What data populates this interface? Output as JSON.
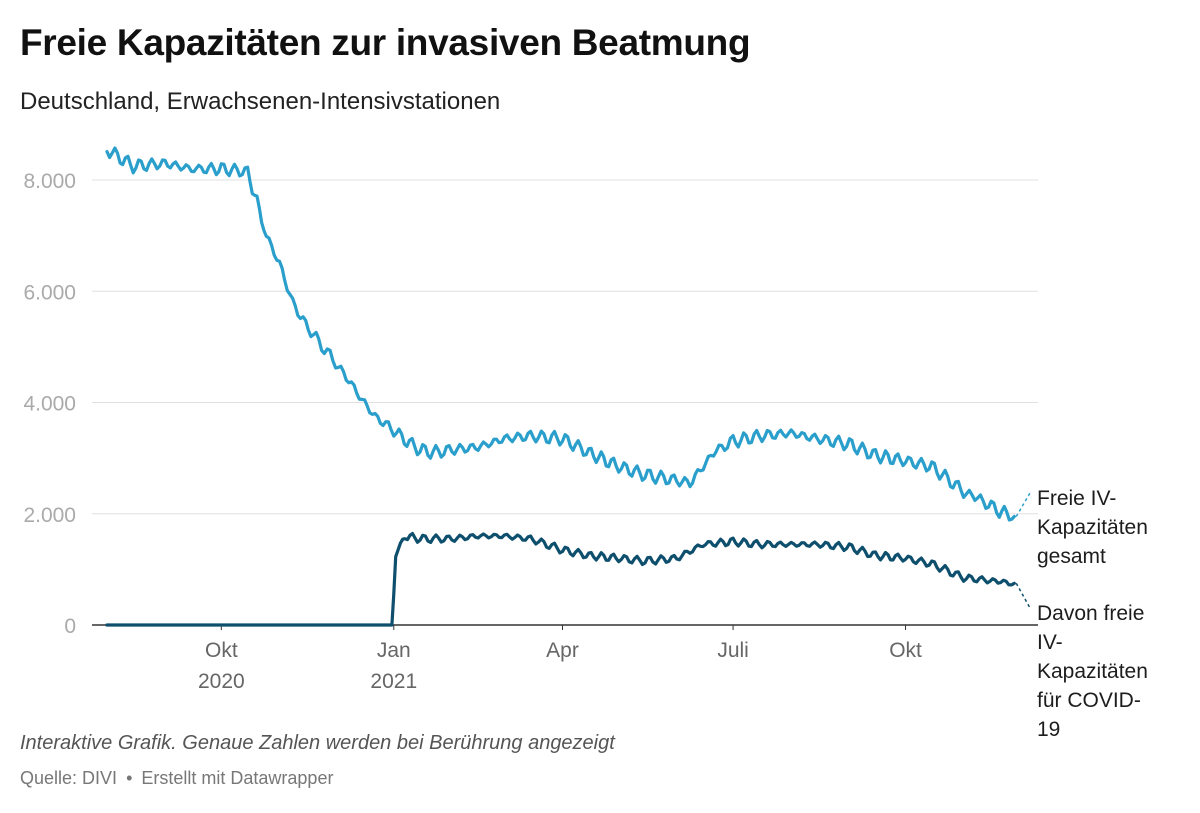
{
  "title": "Freie Kapazitäten zur invasiven Beatmung",
  "subtitle": "Deutschland, Erwachsenen-Intensivstationen",
  "note": "Interaktive Grafik. Genaue Zahlen werden bei Berührung angezeigt",
  "source": {
    "label": "Quelle: DIVI",
    "separator": "•",
    "made_with": "Erstellt mit Datawrapper"
  },
  "colors": {
    "total": "#2a9fcb",
    "covid": "#0e4f6e",
    "grid": "#e0e0e0",
    "axis": "#333333",
    "tick_text": "#aaaaaa",
    "x_tick_text": "#666666"
  },
  "chart_data": {
    "type": "line",
    "y_ticks": [
      "8.000",
      "6.000",
      "4.000",
      "2.000",
      "0"
    ],
    "y_tick_values": [
      8000,
      6000,
      4000,
      2000,
      0
    ],
    "ylim": [
      0,
      8600
    ],
    "x_range": [
      "2020-08-01",
      "2021-11-30"
    ],
    "x_ticks": [
      {
        "date": "2020-10-01",
        "label": "Okt",
        "year": "2020"
      },
      {
        "date": "2021-01-01",
        "label": "Jan",
        "year": "2021"
      },
      {
        "date": "2021-04-01",
        "label": "Apr",
        "year": ""
      },
      {
        "date": "2021-07-01",
        "label": "Juli",
        "year": ""
      },
      {
        "date": "2021-10-01",
        "label": "Okt",
        "year": ""
      }
    ],
    "grid": true,
    "series": [
      {
        "name": "Freie IV-Kapazitäten gesamt",
        "label_lines": [
          "Freie IV-",
          "Kapazitäten",
          "gesamt"
        ],
        "points": [
          [
            "2020-08-01",
            8550
          ],
          [
            "2020-08-15",
            8250
          ],
          [
            "2020-09-01",
            8300
          ],
          [
            "2020-09-15",
            8200
          ],
          [
            "2020-10-01",
            8200
          ],
          [
            "2020-10-15",
            8150
          ],
          [
            "2020-10-20",
            7600
          ],
          [
            "2020-10-25",
            7000
          ],
          [
            "2020-11-01",
            6500
          ],
          [
            "2020-11-08",
            5800
          ],
          [
            "2020-11-15",
            5400
          ],
          [
            "2020-11-22",
            5100
          ],
          [
            "2020-12-01",
            4700
          ],
          [
            "2020-12-08",
            4400
          ],
          [
            "2020-12-15",
            4050
          ],
          [
            "2020-12-22",
            3750
          ],
          [
            "2021-01-01",
            3500
          ],
          [
            "2021-01-08",
            3300
          ],
          [
            "2021-01-15",
            3150
          ],
          [
            "2021-01-22",
            3100
          ],
          [
            "2021-02-01",
            3150
          ],
          [
            "2021-02-15",
            3200
          ],
          [
            "2021-03-01",
            3350
          ],
          [
            "2021-03-15",
            3400
          ],
          [
            "2021-04-01",
            3350
          ],
          [
            "2021-04-15",
            3100
          ],
          [
            "2021-05-01",
            2850
          ],
          [
            "2021-05-15",
            2700
          ],
          [
            "2021-06-01",
            2600
          ],
          [
            "2021-06-08",
            2550
          ],
          [
            "2021-06-15",
            2850
          ],
          [
            "2021-06-22",
            3150
          ],
          [
            "2021-07-01",
            3300
          ],
          [
            "2021-07-15",
            3400
          ],
          [
            "2021-08-01",
            3450
          ],
          [
            "2021-08-15",
            3350
          ],
          [
            "2021-09-01",
            3250
          ],
          [
            "2021-09-15",
            3050
          ],
          [
            "2021-10-01",
            2950
          ],
          [
            "2021-10-15",
            2850
          ],
          [
            "2021-11-01",
            2400
          ],
          [
            "2021-11-10",
            2250
          ],
          [
            "2021-11-20",
            2050
          ],
          [
            "2021-11-28",
            1950
          ]
        ]
      },
      {
        "name": "Davon freie IV-Kapazitäten für COVID-19",
        "label_lines": [
          "Davon freie",
          "IV-",
          "Kapazitäten",
          "für COVID-",
          "19"
        ],
        "points": [
          [
            "2020-08-01",
            0
          ],
          [
            "2020-12-31",
            0
          ],
          [
            "2021-01-02",
            1250
          ],
          [
            "2021-01-07",
            1600
          ],
          [
            "2021-01-15",
            1550
          ],
          [
            "2021-02-01",
            1550
          ],
          [
            "2021-02-15",
            1600
          ],
          [
            "2021-03-01",
            1600
          ],
          [
            "2021-03-15",
            1550
          ],
          [
            "2021-04-01",
            1350
          ],
          [
            "2021-04-15",
            1250
          ],
          [
            "2021-05-01",
            1200
          ],
          [
            "2021-05-15",
            1150
          ],
          [
            "2021-06-01",
            1200
          ],
          [
            "2021-06-15",
            1450
          ],
          [
            "2021-07-01",
            1500
          ],
          [
            "2021-07-15",
            1450
          ],
          [
            "2021-08-01",
            1450
          ],
          [
            "2021-08-15",
            1450
          ],
          [
            "2021-09-01",
            1400
          ],
          [
            "2021-09-15",
            1250
          ],
          [
            "2021-10-01",
            1200
          ],
          [
            "2021-10-15",
            1100
          ],
          [
            "2021-11-01",
            850
          ],
          [
            "2021-11-15",
            800
          ],
          [
            "2021-11-28",
            750
          ]
        ]
      }
    ]
  }
}
